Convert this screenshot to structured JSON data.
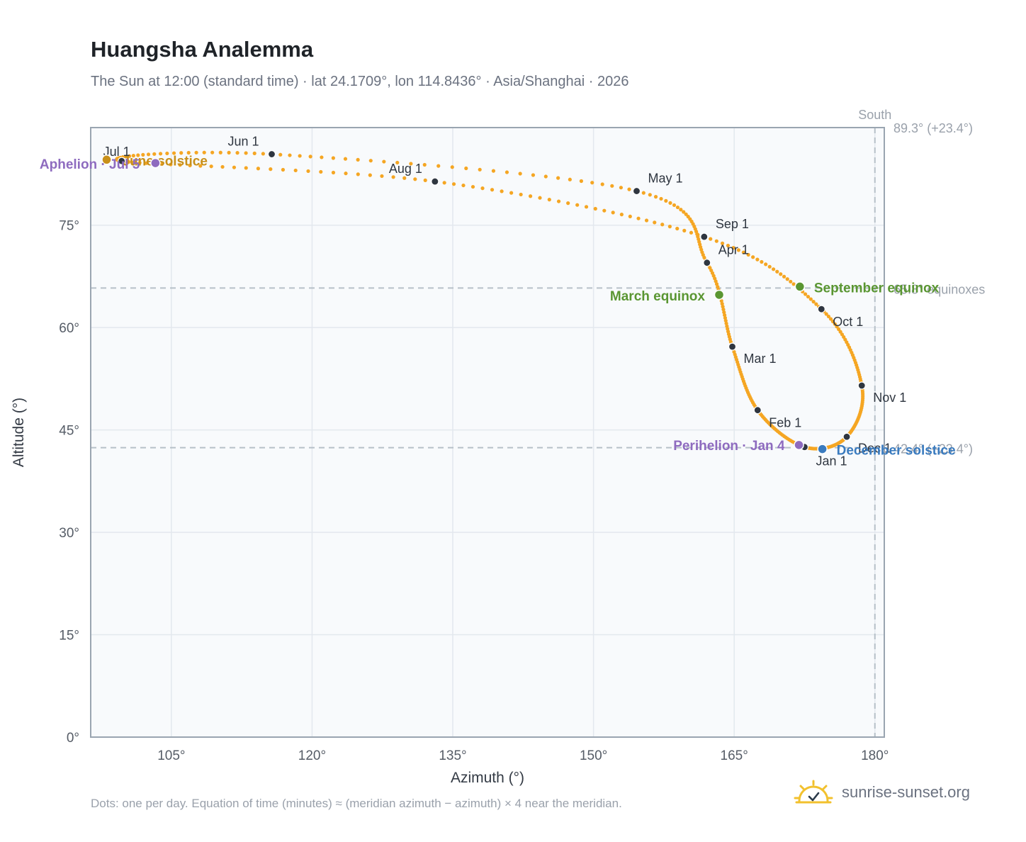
{
  "header": {
    "title": "Huangsha Analemma",
    "subtitle": "The Sun at 12:00 (standard time) · lat 24.1709°, lon 114.8436° · Asia/Shanghai · 2026"
  },
  "footer": {
    "note": "Dots: one per day. Equation of time (minutes) ≈ (meridian azimuth − azimuth) × 4 near the meridian.",
    "brand": "sunrise-sunset.org",
    "brand_icon": "sun-logo-icon"
  },
  "colors": {
    "curve": "#f5a623",
    "month_dot": "#2f3640",
    "solstice_june": "#c8901a",
    "solstice_december": "#3a7bbf",
    "equinox": "#5a9632",
    "apsis": "#8e6bbf",
    "plot_bg": "#f8fafc",
    "grid": "#e3e8ee",
    "reference": "#b6c0c8"
  },
  "chart_data": {
    "type": "scatter",
    "xlabel": "Azimuth (°)",
    "ylabel": "Altitude (°)",
    "xlim": [
      96.4,
      181.0
    ],
    "ylim": [
      0,
      89.3
    ],
    "x_ticks": [
      105,
      120,
      135,
      150,
      165,
      180
    ],
    "x_tick_labels": [
      "105°",
      "120°",
      "135°",
      "150°",
      "165°",
      "180°"
    ],
    "y_ticks": [
      0,
      15,
      30,
      45,
      60,
      75
    ],
    "y_tick_labels": [
      "0°",
      "15°",
      "30°",
      "45°",
      "60°",
      "75°"
    ],
    "grid": true,
    "reference_lines": {
      "meridian": {
        "azimuth": 180,
        "label": "South"
      },
      "top": {
        "altitude": 89.3,
        "label": "89.3° (+23.4°)"
      },
      "equinox": {
        "altitude": 65.8,
        "label": "65.8° equinoxes"
      },
      "bottom": {
        "altitude": 42.4,
        "label": "42.4° (−23.4°)"
      }
    },
    "month_points": [
      {
        "label": "Jan 1",
        "azimuth": 172.5,
        "altitude": 42.5
      },
      {
        "label": "Feb 1",
        "azimuth": 167.5,
        "altitude": 47.9
      },
      {
        "label": "Mar 1",
        "azimuth": 164.8,
        "altitude": 57.2
      },
      {
        "label": "Apr 1",
        "azimuth": 162.1,
        "altitude": 69.5
      },
      {
        "label": "May 1",
        "azimuth": 154.6,
        "altitude": 80.0
      },
      {
        "label": "Jun 1",
        "azimuth": 115.7,
        "altitude": 85.4
      },
      {
        "label": "Jul 1",
        "azimuth": 99.7,
        "altitude": 84.4
      },
      {
        "label": "Aug 1",
        "azimuth": 133.1,
        "altitude": 81.4
      },
      {
        "label": "Sep 1",
        "azimuth": 161.8,
        "altitude": 73.3
      },
      {
        "label": "Oct 1",
        "azimuth": 174.3,
        "altitude": 62.7
      },
      {
        "label": "Nov 1",
        "azimuth": 178.6,
        "altitude": 51.5
      },
      {
        "label": "Dec 1",
        "azimuth": 177.0,
        "altitude": 44.0
      }
    ],
    "events": [
      {
        "label": "June solstice",
        "azimuth": 98.1,
        "altitude": 84.6,
        "kind": "solstice_june"
      },
      {
        "label": "Aphelion · Jul 5",
        "azimuth": 103.3,
        "altitude": 84.1,
        "kind": "apsis"
      },
      {
        "label": "March equinox",
        "azimuth": 163.4,
        "altitude": 64.8,
        "kind": "equinox"
      },
      {
        "label": "September equinox",
        "azimuth": 172.0,
        "altitude": 66.0,
        "kind": "equinox"
      },
      {
        "label": "Perihelion · Jan 4",
        "azimuth": 171.9,
        "altitude": 42.8,
        "kind": "apsis"
      },
      {
        "label": "December solstice",
        "azimuth": 174.4,
        "altitude": 42.2,
        "kind": "solstice_december"
      }
    ]
  }
}
